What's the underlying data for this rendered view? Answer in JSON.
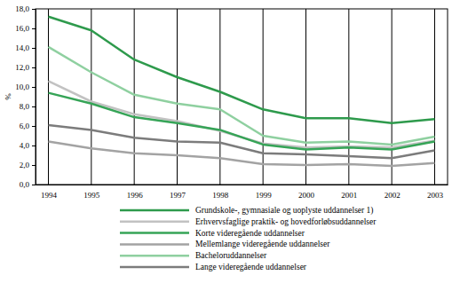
{
  "chart_data": {
    "type": "line",
    "y_label": "%",
    "categories": [
      "1994",
      "1995",
      "1996",
      "1997",
      "1998",
      "1999",
      "2000",
      "2001",
      "2002",
      "2003"
    ],
    "series": [
      {
        "name": "Grundskole-, gymnasiale og uoplyste uddannelser 1)",
        "color": "#2e9a4c",
        "values": [
          17.2,
          15.8,
          12.8,
          11.0,
          9.5,
          7.7,
          6.8,
          6.8,
          6.3,
          6.7
        ]
      },
      {
        "name": "Erhvervsfaglige praktik- og hovedforløbsuddannelser",
        "color": "#c2c2c2",
        "values": [
          10.6,
          8.5,
          7.2,
          6.5,
          5.5,
          4.2,
          3.8,
          3.9,
          3.8,
          4.5
        ]
      },
      {
        "name": "Korte videregående uddannelser",
        "color": "#36a457",
        "values": [
          9.4,
          8.3,
          6.9,
          6.3,
          5.6,
          4.1,
          3.6,
          3.8,
          3.6,
          4.4
        ]
      },
      {
        "name": "Mellemlange videregående uddannelser",
        "color": "#a3a3a3",
        "values": [
          4.4,
          3.7,
          3.2,
          3.0,
          2.7,
          2.1,
          2.0,
          2.1,
          1.9,
          2.2
        ]
      },
      {
        "name": "Bacheloruddannelser",
        "color": "#8fd0a0",
        "values": [
          14.1,
          11.5,
          9.2,
          8.3,
          7.7,
          5.0,
          4.3,
          4.4,
          4.1,
          4.9
        ]
      },
      {
        "name": "Lange videregående uddannelser",
        "color": "#7c7c7c",
        "values": [
          6.1,
          5.6,
          4.8,
          4.4,
          4.3,
          3.2,
          3.1,
          2.9,
          2.7,
          3.5
        ]
      }
    ],
    "ylim": [
      0,
      18
    ],
    "yticks": [
      {
        "value": 0,
        "label": "0,0"
      },
      {
        "value": 2,
        "label": "2,0"
      },
      {
        "value": 4,
        "label": "4,0"
      },
      {
        "value": 6,
        "label": "6,0"
      },
      {
        "value": 8,
        "label": "8,0"
      },
      {
        "value": 10,
        "label": "10,0"
      },
      {
        "value": 12,
        "label": "12,0"
      },
      {
        "value": 14,
        "label": "14,0"
      },
      {
        "value": 16,
        "label": "16,0"
      },
      {
        "value": 18,
        "label": "18,0"
      }
    ],
    "grid": true,
    "legend": "bottom"
  }
}
